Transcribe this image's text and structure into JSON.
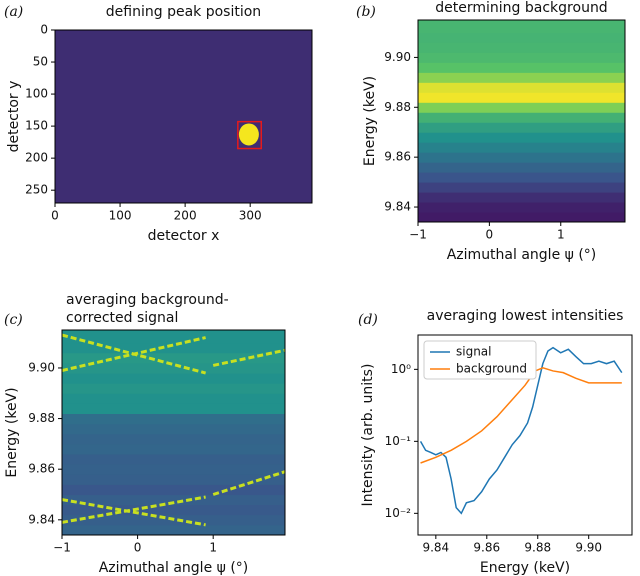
{
  "chart_data": [
    {
      "type": "image",
      "panel": "(a)",
      "title": "defining peak position",
      "xlabel": "detector x",
      "ylabel": "detector y",
      "xlim": [
        0,
        395
      ],
      "xticks": [
        0,
        100,
        200,
        300
      ],
      "ylim": [
        270,
        0
      ],
      "yticks": [
        0,
        50,
        100,
        150,
        200,
        250
      ],
      "peak": {
        "x": 298,
        "y": 163
      },
      "peak_color": "#f5e61e",
      "roi": {
        "x": [
          281,
          317
        ],
        "y": [
          143,
          185
        ]
      },
      "roi_color": "#e41a1c"
    },
    {
      "type": "heatmap",
      "panel": "(b)",
      "title": "determining background",
      "xlabel": "Azimuthal angle ψ (°)",
      "ylabel": "Energy (keV)",
      "xlim": [
        -1,
        1.9
      ],
      "xticks": [
        {
          "value": -1,
          "label": "−1"
        },
        0,
        1
      ],
      "ylim": [
        9.834,
        9.915
      ],
      "yticks": [
        9.84,
        9.86,
        9.88,
        {
          "value": 9.9,
          "label": "9.90"
        }
      ],
      "y": [
        9.836,
        9.84,
        9.844,
        9.848,
        9.852,
        9.856,
        9.86,
        9.864,
        9.868,
        9.872,
        9.876,
        9.88,
        9.884,
        9.888,
        9.892,
        9.896,
        9.9,
        9.904,
        9.908,
        9.912
      ],
      "values": [
        0.08,
        0.1,
        0.14,
        0.2,
        0.26,
        0.32,
        0.38,
        0.44,
        0.5,
        0.56,
        0.64,
        0.8,
        0.98,
        0.95,
        0.82,
        0.72,
        0.68,
        0.66,
        0.65,
        0.66
      ]
    },
    {
      "type": "heatmap",
      "panel": "(c)",
      "title": [
        "averaging background-",
        "corrected signal"
      ],
      "xlabel": "Azimuthal angle ψ (°)",
      "ylabel": "Energy (keV)",
      "xlim": [
        -1,
        1.95
      ],
      "xticks": [
        {
          "value": -1,
          "label": "−1"
        },
        0,
        1
      ],
      "ylim": [
        9.834,
        9.915
      ],
      "yticks": [
        9.84,
        9.86,
        9.88,
        {
          "value": 9.9,
          "label": "9.90"
        }
      ],
      "y": [
        9.836,
        9.84,
        9.844,
        9.848,
        9.852,
        9.856,
        9.86,
        9.864,
        9.868,
        9.872,
        9.876,
        9.88,
        9.884,
        9.888,
        9.892,
        9.896,
        9.9,
        9.904,
        9.908,
        9.912
      ],
      "values": [
        0.32,
        0.3,
        0.28,
        0.3,
        0.27,
        0.3,
        0.31,
        0.3,
        0.33,
        0.32,
        0.34,
        0.36,
        0.5,
        0.5,
        0.52,
        0.5,
        0.52,
        0.53,
        0.5,
        0.5
      ],
      "line_color": "#c8e020",
      "lines": [
        {
          "x": [
            -1,
            0.9
          ],
          "values": [
            9.913,
            9.898
          ]
        },
        {
          "x": [
            -1,
            0.9
          ],
          "values": [
            9.899,
            9.912
          ]
        },
        {
          "x": [
            1,
            1.95
          ],
          "values": [
            9.901,
            9.907
          ]
        },
        {
          "x": [
            -1,
            0.9
          ],
          "values": [
            9.848,
            9.838
          ]
        },
        {
          "x": [
            -1,
            0.9
          ],
          "values": [
            9.839,
            9.849
          ]
        },
        {
          "x": [
            1,
            1.95
          ],
          "values": [
            9.85,
            9.859
          ]
        }
      ]
    },
    {
      "type": "line",
      "panel": "(d)",
      "title": "averaging lowest intensities",
      "xlabel": "Energy (keV)",
      "ylabel": "Intensity (arb. units)",
      "log_y": true,
      "legend": "upper-left",
      "xlim": [
        9.833,
        9.917
      ],
      "xticks": [
        9.84,
        9.86,
        9.88,
        {
          "value": 9.9,
          "label": "9.90"
        }
      ],
      "ylim": [
        0.005,
        3
      ],
      "yticks": [
        {
          "value": 0.01,
          "label": "10⁻²"
        },
        {
          "value": 0.1,
          "label": "10⁻¹"
        },
        {
          "value": 1,
          "label": "10⁰"
        }
      ],
      "series": [
        {
          "name": "signal",
          "color": "#1f77b4",
          "x": [
            9.834,
            9.836,
            9.838,
            9.84,
            9.842,
            9.844,
            9.846,
            9.848,
            9.85,
            9.852,
            9.855,
            9.858,
            9.861,
            9.864,
            9.867,
            9.87,
            9.873,
            9.876,
            9.878,
            9.88,
            9.882,
            9.884,
            9.886,
            9.889,
            9.892,
            9.895,
            9.898,
            9.901,
            9.904,
            9.907,
            9.91,
            9.913
          ],
          "values": [
            0.1,
            0.075,
            0.07,
            0.065,
            0.07,
            0.06,
            0.03,
            0.012,
            0.01,
            0.014,
            0.015,
            0.02,
            0.03,
            0.04,
            0.06,
            0.09,
            0.12,
            0.18,
            0.3,
            0.6,
            1.2,
            1.8,
            2.0,
            1.7,
            1.9,
            1.5,
            1.2,
            1.2,
            1.3,
            1.2,
            1.3,
            0.9
          ]
        },
        {
          "name": "background",
          "color": "#ff7f0e",
          "x": [
            9.834,
            9.84,
            9.846,
            9.852,
            9.858,
            9.864,
            9.87,
            9.875,
            9.879,
            9.882,
            9.886,
            9.89,
            9.895,
            9.9,
            9.905,
            9.91,
            9.913
          ],
          "values": [
            0.05,
            0.06,
            0.075,
            0.1,
            0.14,
            0.22,
            0.38,
            0.6,
            0.95,
            1.05,
            0.95,
            0.9,
            0.75,
            0.65,
            0.65,
            0.65,
            0.65
          ]
        }
      ]
    }
  ]
}
